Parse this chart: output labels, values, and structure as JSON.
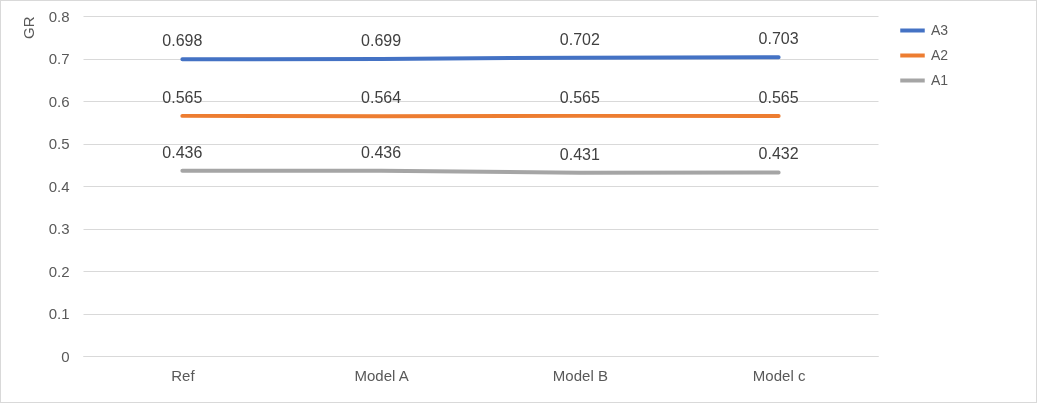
{
  "chart_data": {
    "type": "line",
    "ylabel": "GR",
    "categories": [
      "Ref",
      "Model A",
      "Model B",
      "Model c"
    ],
    "series": [
      {
        "name": "A3",
        "color": "#4472c4",
        "values": [
          0.698,
          0.699,
          0.702,
          0.703
        ]
      },
      {
        "name": "A2",
        "color": "#ed7d31",
        "values": [
          0.565,
          0.564,
          0.565,
          0.565
        ]
      },
      {
        "name": "A1",
        "color": "#a5a5a5",
        "values": [
          0.436,
          0.436,
          0.431,
          0.432
        ]
      }
    ],
    "ylim": [
      0,
      0.8
    ],
    "yticks": [
      0,
      0.1,
      0.2,
      0.3,
      0.4,
      0.5,
      0.6,
      0.7,
      0.8
    ],
    "grid": "y",
    "legend": "right",
    "data_labels": true,
    "marker": "none",
    "line_style": "solid"
  }
}
